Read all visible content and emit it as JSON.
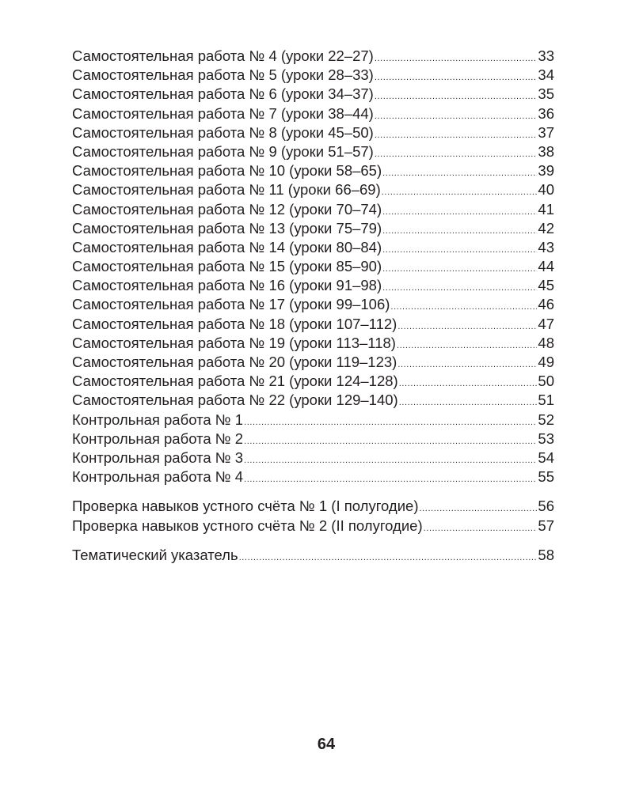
{
  "toc": {
    "groups": [
      {
        "entries": [
          {
            "title": "Самостоятельная работа № 4 (уроки 22–27)",
            "page": "33"
          },
          {
            "title": "Самостоятельная работа № 5 (уроки 28–33)",
            "page": "34"
          },
          {
            "title": "Самостоятельная работа № 6 (уроки 34–37)",
            "page": "35"
          },
          {
            "title": "Самостоятельная работа № 7 (уроки 38–44)",
            "page": "36"
          },
          {
            "title": "Самостоятельная работа № 8 (уроки 45–50)",
            "page": "37"
          },
          {
            "title": "Самостоятельная работа № 9 (уроки 51–57)",
            "page": "38"
          },
          {
            "title": "Самостоятельная работа № 10 (уроки 58–65)",
            "page": "39"
          },
          {
            "title": "Самостоятельная работа № 11 (уроки 66–69)",
            "page": "40"
          },
          {
            "title": "Самостоятельная работа № 12 (уроки 70–74)",
            "page": "41"
          },
          {
            "title": "Самостоятельная работа № 13 (уроки 75–79)",
            "page": "42"
          },
          {
            "title": "Самостоятельная работа № 14 (уроки 80–84)",
            "page": "43"
          },
          {
            "title": "Самостоятельная работа № 15 (уроки 85–90)",
            "page": "44"
          },
          {
            "title": "Самостоятельная работа № 16 (уроки 91–98)",
            "page": "45"
          },
          {
            "title": "Самостоятельная работа № 17 (уроки 99–106)",
            "page": "46"
          },
          {
            "title": "Самостоятельная работа № 18 (уроки 107–112)",
            "page": "47"
          },
          {
            "title": "Самостоятельная работа № 19 (уроки 113–118)",
            "page": "48"
          },
          {
            "title": "Самостоятельная работа № 20 (уроки 119–123)",
            "page": "49"
          },
          {
            "title": "Самостоятельная работа № 21 (уроки 124–128)",
            "page": "50"
          },
          {
            "title": "Самостоятельная работа № 22 (уроки 129–140)",
            "page": "51"
          },
          {
            "title": "Контрольная работа № 1",
            "page": "52"
          },
          {
            "title": "Контрольная работа № 2",
            "page": "53"
          },
          {
            "title": "Контрольная работа № 3",
            "page": "54"
          },
          {
            "title": "Контрольная работа № 4",
            "page": "55"
          }
        ]
      },
      {
        "entries": [
          {
            "title": "Проверка навыков устного счёта № 1 (I полугодие)",
            "page": "56"
          },
          {
            "title": "Проверка навыков устного счёта № 2 (II полугодие)",
            "page": "57"
          }
        ]
      },
      {
        "entries": [
          {
            "title": "Тематический указатель",
            "page": "58"
          }
        ]
      }
    ]
  },
  "footer": {
    "page_number": "64"
  }
}
